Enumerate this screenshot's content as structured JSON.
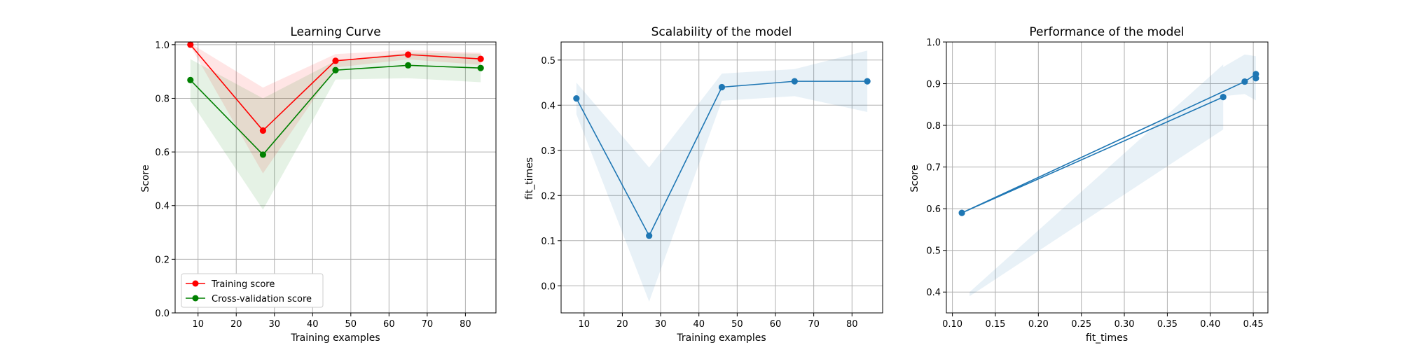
{
  "colors": {
    "train": "#ff0000",
    "cv": "#008000",
    "blue": "#1f77b4",
    "grid": "#b0b0b0"
  },
  "chart_data": [
    {
      "type": "line",
      "title": "Learning Curve",
      "xlabel": "Training examples",
      "ylabel": "Score",
      "xlim": [
        4.0,
        88.0
      ],
      "ylim": [
        0.0,
        1.01
      ],
      "xticks": [
        10,
        20,
        30,
        40,
        50,
        60,
        70,
        80
      ],
      "yticks": [
        0.0,
        0.2,
        0.4,
        0.6,
        0.8,
        1.0
      ],
      "xtick_labels": [
        "10",
        "20",
        "30",
        "40",
        "50",
        "60",
        "70",
        "80"
      ],
      "ytick_labels": [
        "0.0",
        "0.2",
        "0.4",
        "0.6",
        "0.8",
        "1.0"
      ],
      "grid": true,
      "legend": "lower-left",
      "x": [
        8,
        27,
        46,
        65,
        84
      ],
      "series": [
        {
          "name": "Training score",
          "color_key": "train",
          "values": [
            1.0,
            0.68,
            0.94,
            0.963,
            0.947
          ],
          "band_low": [
            0.995,
            0.52,
            0.915,
            0.945,
            0.925
          ],
          "band_high": [
            1.005,
            0.84,
            0.965,
            0.98,
            0.97
          ]
        },
        {
          "name": "Cross-validation score",
          "color_key": "cv",
          "values": [
            0.868,
            0.59,
            0.905,
            0.923,
            0.913
          ],
          "band_low": [
            0.79,
            0.385,
            0.87,
            0.875,
            0.86
          ],
          "band_high": [
            0.946,
            0.8,
            0.94,
            0.97,
            0.966
          ]
        }
      ]
    },
    {
      "type": "line",
      "title": "Scalability of the model",
      "xlabel": "Training examples",
      "ylabel": "fit_times",
      "xlim": [
        4.0,
        88.0
      ],
      "ylim": [
        -0.06,
        0.54
      ],
      "xticks": [
        10,
        20,
        30,
        40,
        50,
        60,
        70,
        80
      ],
      "yticks": [
        0.0,
        0.1,
        0.2,
        0.3,
        0.4,
        0.5
      ],
      "xtick_labels": [
        "10",
        "20",
        "30",
        "40",
        "50",
        "60",
        "70",
        "80"
      ],
      "ytick_labels": [
        "0.0",
        "0.1",
        "0.2",
        "0.3",
        "0.4",
        "0.5"
      ],
      "grid": true,
      "x": [
        8,
        27,
        46,
        65,
        84
      ],
      "series": [
        {
          "color_key": "blue",
          "values": [
            0.415,
            0.111,
            0.44,
            0.453,
            0.453
          ],
          "band_low": [
            0.38,
            -0.035,
            0.41,
            0.42,
            0.385
          ],
          "band_high": [
            0.45,
            0.262,
            0.47,
            0.48,
            0.521
          ]
        }
      ]
    },
    {
      "type": "line",
      "title": "Performance of the model",
      "xlabel": "fit_times",
      "ylabel": "Score",
      "xlim": [
        0.093,
        0.467
      ],
      "ylim": [
        0.35,
        1.0
      ],
      "xticks": [
        0.1,
        0.15,
        0.2,
        0.25,
        0.3,
        0.35,
        0.4,
        0.45
      ],
      "yticks": [
        0.4,
        0.5,
        0.6,
        0.7,
        0.8,
        0.9,
        1.0
      ],
      "xtick_labels": [
        "0.10",
        "0.15",
        "0.20",
        "0.25",
        "0.30",
        "0.35",
        "0.40",
        "0.45"
      ],
      "ytick_labels": [
        "0.4",
        "0.5",
        "0.6",
        "0.7",
        "0.8",
        "0.9",
        "1.0"
      ],
      "grid": true,
      "series": [
        {
          "color_key": "blue",
          "x": [
            0.415,
            0.111,
            0.44,
            0.453,
            0.453
          ],
          "values": [
            0.868,
            0.59,
            0.905,
            0.923,
            0.913
          ],
          "band_x": [
            0.12,
            0.415,
            0.415,
            0.44,
            0.453,
            0.453
          ],
          "band_low": [
            0.39,
            0.79,
            0.87,
            0.875,
            0.86,
            0.86
          ],
          "band_high": [
            0.4,
            0.946,
            0.94,
            0.97,
            0.966,
            0.966
          ]
        }
      ]
    }
  ]
}
